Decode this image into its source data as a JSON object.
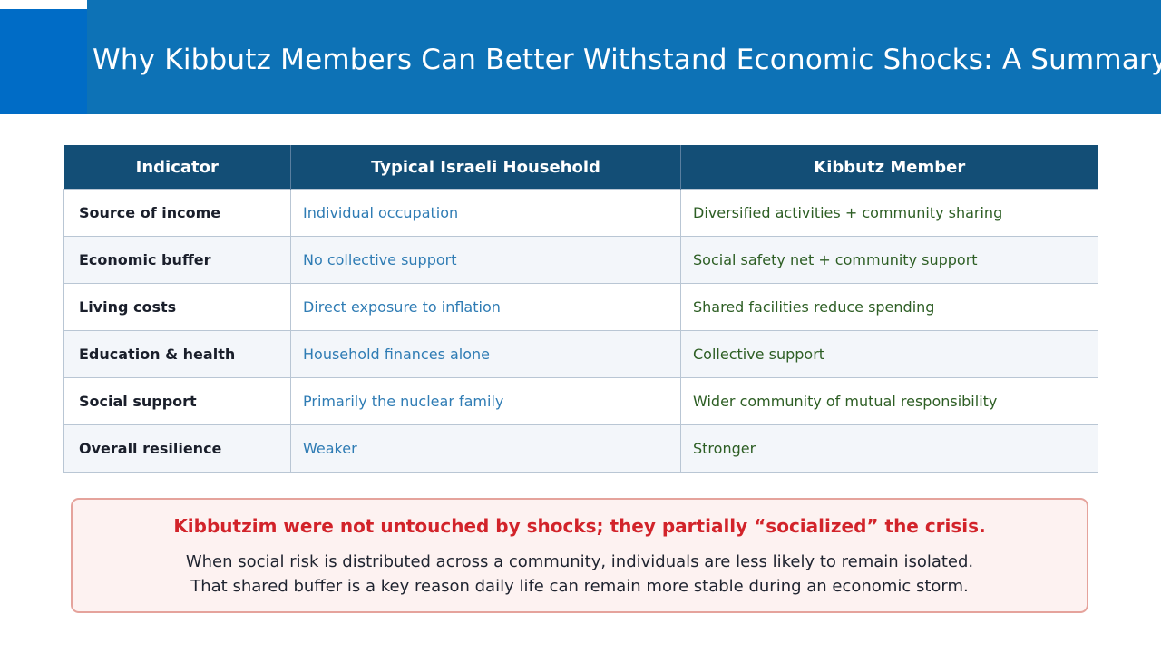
{
  "title": "Why Kibbutz Members Can Better Withstand Economic Shocks: A Summary",
  "colors": {
    "header_bg": "#0d72b6",
    "table_header_bg": "#134e76",
    "typical_text": "#2f7cb4",
    "kibbutz_text": "#2d5e24",
    "callout_heading": "#d2232a",
    "callout_bg": "#fdf2f1"
  },
  "table": {
    "headers": [
      "Indicator",
      "Typical Israeli Household",
      "Kibbutz Member"
    ],
    "rows": [
      {
        "indicator": "Source of income",
        "typical": "Individual occupation",
        "kibbutz": "Diversified activities + community sharing"
      },
      {
        "indicator": "Economic buffer",
        "typical": "No collective support",
        "kibbutz": "Social safety net + community support"
      },
      {
        "indicator": "Living costs",
        "typical": "Direct exposure to inflation",
        "kibbutz": "Shared facilities reduce spending"
      },
      {
        "indicator": "Education & health",
        "typical": "Household finances alone",
        "kibbutz": "Collective support"
      },
      {
        "indicator": "Social support",
        "typical": "Primarily the nuclear family",
        "kibbutz": "Wider community of mutual responsibility"
      },
      {
        "indicator": "Overall resilience",
        "typical": "Weaker",
        "kibbutz": "Stronger"
      }
    ]
  },
  "callout": {
    "heading": "Kibbutzim were not untouched by shocks; they partially “socialized” the crisis.",
    "line1": "When social risk is distributed across a community, individuals are less likely to remain isolated.",
    "line2": "That shared buffer is a key reason daily life can remain more stable during an economic storm."
  }
}
